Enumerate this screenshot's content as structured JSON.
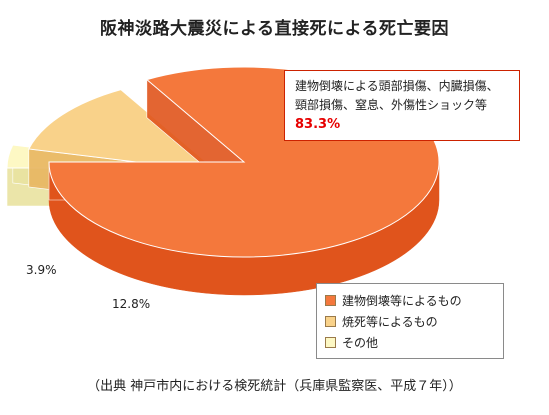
{
  "chart_data": {
    "type": "pie",
    "title": "阪神淡路大震災による直接死による死亡要因",
    "categories": [
      "建物倒壊等によるもの",
      "焼死等によるもの",
      "その他"
    ],
    "values": [
      83.3,
      12.8,
      3.9
    ],
    "value_labels": [
      "83.3%",
      "12.8%",
      "3.9%"
    ],
    "colors": [
      "#f4783c",
      "#f9d28a",
      "#fdf8c4"
    ],
    "side_colors": [
      "#e0541c",
      "#e8b560",
      "#e9e2a0"
    ],
    "legend": {
      "placement": "bottom-right",
      "entries": [
        {
          "label": "建物倒壊等によるもの",
          "color": "#f4783c"
        },
        {
          "label": "焼死等によるもの",
          "color": "#f9d28a"
        },
        {
          "label": "その他",
          "color": "#fdf8c4"
        }
      ]
    },
    "annotation": {
      "line1": "建物倒壊による頭部損傷、内臓損傷、",
      "line2": "頸部損傷、窒息、外傷性ショック等",
      "value": "83.3%"
    },
    "source": "（出典  神戸市内における検死統計（兵庫県監察医、平成７年））"
  }
}
